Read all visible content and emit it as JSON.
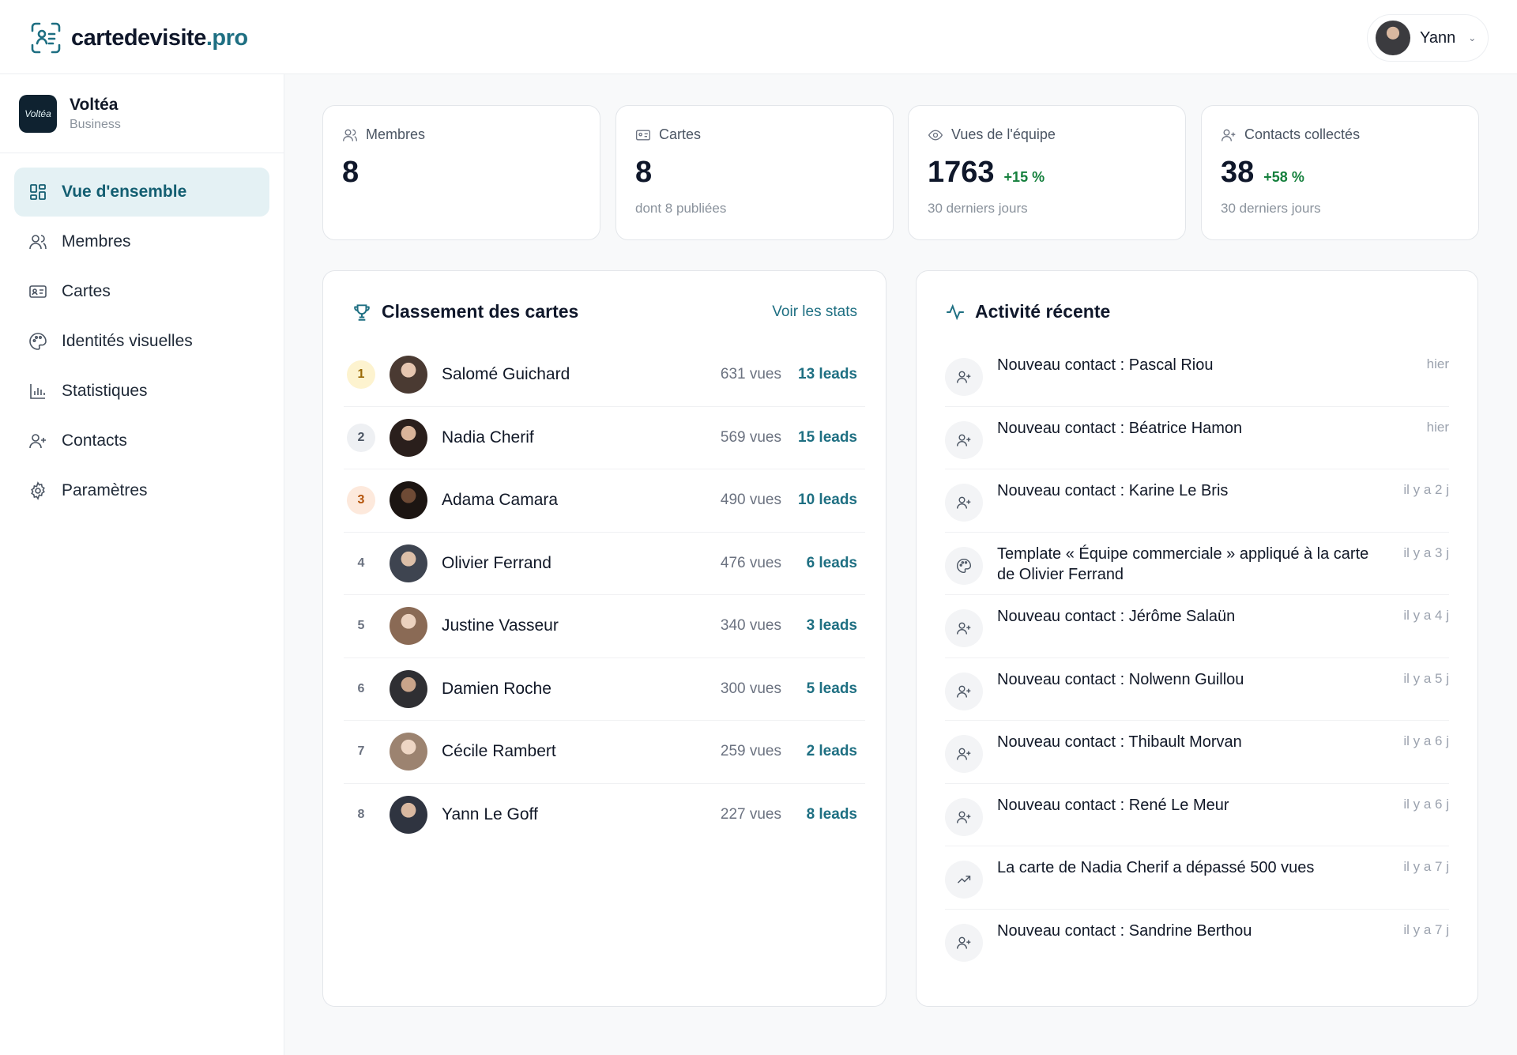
{
  "header": {
    "brand_main": "cartedevisite",
    "brand_tld": ".pro",
    "user_name": "Yann"
  },
  "sidebar": {
    "org_name": "Voltéa",
    "org_plan": "Business",
    "org_logo_text": "Voltéa",
    "items": [
      {
        "label": "Vue d'ensemble",
        "icon": "dashboard-icon"
      },
      {
        "label": "Membres",
        "icon": "users-icon"
      },
      {
        "label": "Cartes",
        "icon": "id-card-icon"
      },
      {
        "label": "Identités visuelles",
        "icon": "palette-icon"
      },
      {
        "label": "Statistiques",
        "icon": "bar-chart-icon"
      },
      {
        "label": "Contacts",
        "icon": "user-plus-icon"
      },
      {
        "label": "Paramètres",
        "icon": "gear-icon"
      }
    ]
  },
  "stats": [
    {
      "label": "Membres",
      "value": "8",
      "delta": "",
      "sub": ""
    },
    {
      "label": "Cartes",
      "value": "8",
      "delta": "",
      "sub": "dont 8 publiées"
    },
    {
      "label": "Vues de l'équipe",
      "value": "1763",
      "delta": "+15 %",
      "sub": "30 derniers jours"
    },
    {
      "label": "Contacts collectés",
      "value": "38",
      "delta": "+58 %",
      "sub": "30 derniers jours"
    }
  ],
  "ranking": {
    "title": "Classement des cartes",
    "link": "Voir les stats",
    "rows": [
      {
        "rank": "1",
        "name": "Salomé Guichard",
        "views": "631 vues",
        "leads": "13 leads"
      },
      {
        "rank": "2",
        "name": "Nadia Cherif",
        "views": "569 vues",
        "leads": "15 leads"
      },
      {
        "rank": "3",
        "name": "Adama Camara",
        "views": "490 vues",
        "leads": "10 leads"
      },
      {
        "rank": "4",
        "name": "Olivier Ferrand",
        "views": "476 vues",
        "leads": "6 leads"
      },
      {
        "rank": "5",
        "name": "Justine Vasseur",
        "views": "340 vues",
        "leads": "3 leads"
      },
      {
        "rank": "6",
        "name": "Damien Roche",
        "views": "300 vues",
        "leads": "5 leads"
      },
      {
        "rank": "7",
        "name": "Cécile Rambert",
        "views": "259 vues",
        "leads": "2 leads"
      },
      {
        "rank": "8",
        "name": "Yann Le Goff",
        "views": "227 vues",
        "leads": "8 leads"
      }
    ]
  },
  "activity": {
    "title": "Activité récente",
    "items": [
      {
        "text": "Nouveau contact : Pascal Riou",
        "time": "hier",
        "icon": "user-plus-icon"
      },
      {
        "text": "Nouveau contact : Béatrice Hamon",
        "time": "hier",
        "icon": "user-plus-icon"
      },
      {
        "text": "Nouveau contact : Karine Le Bris",
        "time": "il y a 2 j",
        "icon": "user-plus-icon"
      },
      {
        "text": "Template « Équipe commerciale » appliqué à la carte de Olivier Ferrand",
        "time": "il y a 3 j",
        "icon": "palette-icon"
      },
      {
        "text": "Nouveau contact : Jérôme Salaün",
        "time": "il y a 4 j",
        "icon": "user-plus-icon"
      },
      {
        "text": "Nouveau contact : Nolwenn Guillou",
        "time": "il y a 5 j",
        "icon": "user-plus-icon"
      },
      {
        "text": "Nouveau contact : Thibault Morvan",
        "time": "il y a 6 j",
        "icon": "user-plus-icon"
      },
      {
        "text": "Nouveau contact : René Le Meur",
        "time": "il y a 6 j",
        "icon": "user-plus-icon"
      },
      {
        "text": "La carte de Nadia Cherif a dépassé 500 vues",
        "time": "il y a 7 j",
        "icon": "trending-up-icon"
      },
      {
        "text": "Nouveau contact : Sandrine Berthou",
        "time": "il y a 7 j",
        "icon": "user-plus-icon"
      }
    ]
  }
}
